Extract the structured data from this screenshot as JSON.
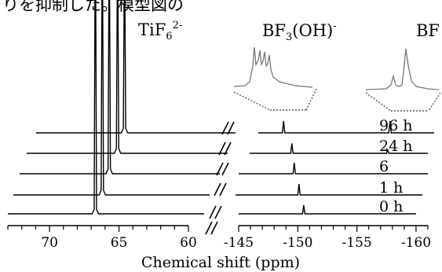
{
  "top_text": "りを抑制した。模型図の",
  "labels": {
    "tif6_base": "TiF",
    "tif6_sub": "6",
    "tif6_sup": "2-",
    "bf3oh_base": "BF",
    "bf3oh_sub": "3",
    "bf3oh_paren": "(OH)",
    "bf3oh_sup": "-",
    "bf_clip": "BF"
  },
  "chart_data": {
    "type": "line",
    "title": "",
    "xlabel": "Chemical shift (ppm)",
    "ylabel": "",
    "grid": false,
    "x_reversed": true,
    "x_broken_axis": true,
    "x_segments": [
      {
        "xlim": [
          73,
          60
        ],
        "ticks": [
          70,
          65,
          60
        ],
        "tick_labels": [
          "70",
          "65",
          "60"
        ]
      },
      {
        "xlim": [
          -145,
          -161
        ],
        "ticks": [
          -145,
          -150,
          -155,
          -160
        ],
        "tick_labels": [
          "-145",
          "-150",
          "-155",
          "-160"
        ]
      }
    ],
    "series": [
      {
        "name": "0 h",
        "peaks": [
          {
            "region": 0,
            "x": 66.7,
            "intensity": 1.0
          },
          {
            "region": 1,
            "x": -150.5,
            "intensity": 0.22
          }
        ]
      },
      {
        "name": "1 h",
        "peaks": [
          {
            "region": 0,
            "x": 66.2,
            "intensity": 1.0
          },
          {
            "region": 1,
            "x": -150.1,
            "intensity": 0.28
          }
        ]
      },
      {
        "name": "6",
        "peaks": [
          {
            "region": 0,
            "x": 65.7,
            "intensity": 1.0
          },
          {
            "region": 1,
            "x": -149.7,
            "intensity": 0.28
          }
        ]
      },
      {
        "name": "24 h",
        "peaks": [
          {
            "region": 0,
            "x": 65.1,
            "intensity": 1.0
          },
          {
            "region": 1,
            "x": -149.5,
            "intensity": 0.25
          },
          {
            "region": 1,
            "x": -157.6,
            "intensity": 0.08
          }
        ]
      },
      {
        "name": "96 h",
        "peaks": [
          {
            "region": 0,
            "x": 64.6,
            "intensity": 1.0
          },
          {
            "region": 1,
            "x": -148.8,
            "intensity": 0.3
          },
          {
            "region": 1,
            "x": -157.8,
            "intensity": 0.3
          }
        ]
      }
    ]
  }
}
